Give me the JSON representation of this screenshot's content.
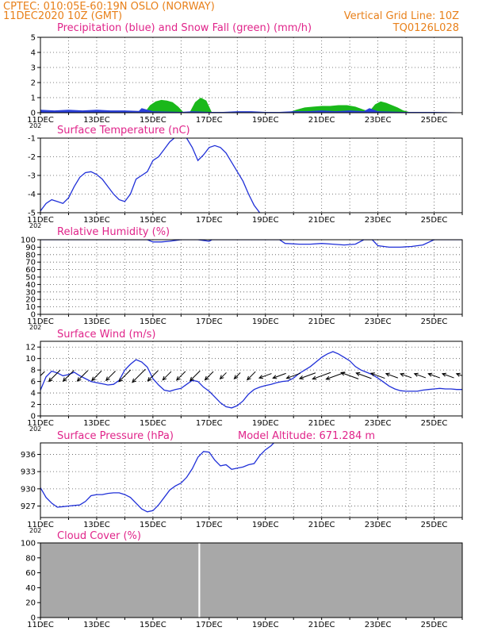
{
  "header": {
    "line1": "CPTEC:   010:05E-60:19N   OSLO (NORWAY)",
    "line2": "11DEC2020  10Z (GMT)",
    "grid_note": "Vertical Grid Line: 10Z",
    "code": "TQ0126L028"
  },
  "model_altitude": "Model Altitude: 671.284 m",
  "x_ticks": [
    "11DEC",
    "13DEC",
    "15DEC",
    "17DEC",
    "19DEC",
    "21DEC",
    "23DEC",
    "25DEC"
  ],
  "year_fragment": "202",
  "chart_data": [
    {
      "id": "precip",
      "type": "area",
      "title": "Precipitation (blue) and Snow Fall (green) (mm/h)",
      "ylim": [
        0,
        5
      ],
      "yticks": [
        "0",
        "1",
        "2",
        "3",
        "4",
        "5"
      ],
      "colors": {
        "precip": "#2a3fd8",
        "snow": "#1ab81a"
      },
      "series": [
        {
          "name": "Precipitation",
          "x": [
            0,
            0.5,
            1,
            1.5,
            2,
            2.5,
            3,
            3.5,
            3.6,
            4,
            5,
            5.4,
            6,
            6.5,
            7,
            7.5,
            8,
            8.5,
            9,
            9.5,
            10,
            10.5,
            11,
            11.5,
            11.7,
            12,
            13,
            14,
            15
          ],
          "values": [
            0.2,
            0.15,
            0.2,
            0.15,
            0.2,
            0.15,
            0.15,
            0.12,
            0.3,
            0.1,
            0.05,
            0.1,
            0.05,
            0.05,
            0.1,
            0.1,
            0.05,
            0.05,
            0.1,
            0.1,
            0.15,
            0.1,
            0.15,
            0.1,
            0.3,
            0.1,
            0.05,
            0.05,
            0.02
          ]
        },
        {
          "name": "Snow Fall",
          "x": [
            3.7,
            3.9,
            4.1,
            4.3,
            4.5,
            4.7,
            4.9,
            5.1,
            5.3,
            5.5,
            5.7,
            5.9,
            6.1,
            6.3,
            6.5,
            6.7,
            7,
            7.3,
            7.6,
            7.9,
            8.2,
            8.5,
            8.8,
            9.1,
            9.4,
            9.7,
            10,
            10.3,
            10.6,
            10.9,
            11.2,
            11.5,
            11.7,
            11.9,
            12.1,
            12.3,
            12.5,
            12.7,
            12.9,
            13.1,
            13.3,
            13.5,
            13.7,
            14,
            14.5,
            15
          ],
          "values": [
            0,
            0.5,
            0.75,
            0.85,
            0.8,
            0.7,
            0.4,
            0,
            0,
            0.7,
            1.0,
            0.8,
            0,
            0,
            0,
            0,
            0,
            0,
            0,
            0,
            0,
            0,
            0,
            0.2,
            0.35,
            0.4,
            0.45,
            0.45,
            0.5,
            0.5,
            0.4,
            0.2,
            0.1,
            0.55,
            0.75,
            0.65,
            0.5,
            0.35,
            0.15,
            0.05,
            0.02,
            0,
            0,
            0,
            0,
            0
          ]
        }
      ]
    },
    {
      "id": "temperature",
      "type": "line",
      "title": "Surface Temperature (nC)",
      "ylim": [
        -5,
        -1
      ],
      "yticks": [
        "-5",
        "-4",
        "-3",
        "-2",
        "-1"
      ],
      "colors": {
        "line": "#2030d8"
      },
      "series": [
        {
          "x": [
            0,
            0.2,
            0.4,
            0.6,
            0.8,
            1,
            1.2,
            1.4,
            1.6,
            1.8,
            2,
            2.2,
            2.4,
            2.6,
            2.8,
            3,
            3.2,
            3.4,
            3.6,
            3.8,
            4,
            4.2,
            4.4,
            4.6,
            4.8,
            5,
            5.2,
            5.4,
            5.6,
            5.8,
            6,
            6.2,
            6.4,
            6.6,
            6.8,
            7,
            7.2,
            7.4,
            7.6,
            7.8,
            8,
            8.2
          ],
          "values": [
            -4.9,
            -4.5,
            -4.3,
            -4.4,
            -4.5,
            -4.2,
            -3.6,
            -3.1,
            -2.85,
            -2.8,
            -2.95,
            -3.2,
            -3.6,
            -4.0,
            -4.3,
            -4.4,
            -4.0,
            -3.2,
            -3.0,
            -2.8,
            -2.2,
            -2.0,
            -1.6,
            -1.2,
            -0.95,
            -0.9,
            -1.0,
            -1.5,
            -2.2,
            -1.9,
            -1.5,
            -1.4,
            -1.5,
            -1.8,
            -2.3,
            -2.8,
            -3.3,
            -4.0,
            -4.6,
            -5.0,
            -5.2,
            -5.3
          ]
        }
      ]
    },
    {
      "id": "humidity",
      "type": "line",
      "title": "Relative Humidity (%)",
      "ylim": [
        0,
        100
      ],
      "yticks": [
        "0",
        "10",
        "20",
        "30",
        "40",
        "50",
        "60",
        "70",
        "80",
        "90",
        "100"
      ],
      "colors": {
        "line": "#2030d8"
      },
      "series": [
        {
          "x": [
            0,
            3.8,
            4,
            4.3,
            4.6,
            5,
            5.6,
            6,
            6.1,
            6.3,
            6.5,
            8.5,
            8.7,
            9.2,
            9.6,
            10,
            10.4,
            10.8,
            11.2,
            11.5,
            11.8,
            12,
            12.4,
            12.8,
            13.2,
            13.6,
            14,
            14.4,
            14.8,
            15
          ],
          "values": [
            100,
            100,
            97,
            97,
            98,
            100,
            100,
            98,
            100,
            100,
            100,
            100,
            95,
            94,
            94,
            95,
            94,
            93,
            94,
            100,
            100,
            92,
            90,
            90,
            91,
            93,
            100,
            100,
            100,
            100
          ]
        }
      ]
    },
    {
      "id": "wind",
      "type": "line",
      "title": "Surface Wind (m/s)",
      "ylim": [
        0,
        13
      ],
      "yticks": [
        "0",
        "2",
        "4",
        "6",
        "8",
        "10",
        "12"
      ],
      "colors": {
        "line": "#2030d8",
        "arrows": "#000000"
      },
      "series": [
        {
          "x": [
            0,
            0.2,
            0.4,
            0.6,
            0.8,
            1,
            1.2,
            1.4,
            1.6,
            1.8,
            2,
            2.2,
            2.4,
            2.6,
            2.8,
            3,
            3.2,
            3.4,
            3.6,
            3.8,
            4,
            4.2,
            4.4,
            4.6,
            4.8,
            5,
            5.2,
            5.4,
            5.6,
            5.8,
            6,
            6.2,
            6.4,
            6.6,
            6.8,
            7,
            7.2,
            7.4,
            7.6,
            7.8,
            8,
            8.2,
            8.4,
            8.6,
            8.8,
            9,
            9.2,
            9.4,
            9.6,
            9.8,
            10,
            10.2,
            10.4,
            10.6,
            10.8,
            11,
            11.2,
            11.4,
            11.6,
            11.8,
            12,
            12.2,
            12.4,
            12.6,
            12.8,
            13,
            13.2,
            13.4,
            13.6,
            13.8,
            14,
            14.2,
            14.4,
            14.6,
            14.8,
            15
          ],
          "values": [
            4.5,
            6.8,
            7.8,
            7.5,
            7.0,
            7.2,
            7.6,
            7.0,
            6.5,
            6.0,
            5.8,
            5.6,
            5.4,
            5.5,
            6.2,
            8.0,
            9.0,
            9.8,
            9.4,
            8.5,
            6.5,
            5.4,
            4.5,
            4.3,
            4.6,
            4.8,
            5.5,
            6.2,
            6.0,
            5.0,
            4.3,
            3.3,
            2.3,
            1.6,
            1.4,
            1.8,
            2.6,
            3.8,
            4.6,
            5.0,
            5.3,
            5.5,
            5.8,
            6.0,
            6.1,
            6.6,
            7.4,
            8.0,
            8.6,
            9.4,
            10.2,
            10.8,
            11.2,
            10.8,
            10.2,
            9.6,
            8.6,
            8.0,
            7.6,
            7.2,
            6.6,
            5.9,
            5.2,
            4.7,
            4.4,
            4.3,
            4.3,
            4.3,
            4.5,
            4.6,
            4.7,
            4.8,
            4.7,
            4.7,
            4.6,
            4.6
          ]
        }
      ]
    },
    {
      "id": "pressure",
      "type": "line",
      "title": "Surface Pressure (hPa)",
      "ylim": [
        925,
        938
      ],
      "yticks": [
        "927",
        "930",
        "933",
        "936"
      ],
      "colors": {
        "line": "#2030d8"
      },
      "series": [
        {
          "x": [
            0,
            0.2,
            0.4,
            0.6,
            0.8,
            1,
            1.2,
            1.4,
            1.6,
            1.8,
            2,
            2.2,
            2.4,
            2.6,
            2.8,
            3,
            3.2,
            3.4,
            3.6,
            3.8,
            4,
            4.2,
            4.4,
            4.6,
            4.8,
            5,
            5.2,
            5.4,
            5.6,
            5.8,
            6,
            6.2,
            6.4,
            6.6,
            6.8,
            7,
            7.2,
            7.4,
            7.6,
            7.8,
            8,
            8.2,
            8.4
          ],
          "values": [
            930.2,
            928.5,
            927.5,
            926.8,
            926.9,
            927.0,
            927.1,
            927.2,
            927.8,
            928.8,
            929.0,
            929.0,
            929.2,
            929.3,
            929.3,
            929.0,
            928.5,
            927.5,
            926.5,
            926.0,
            926.2,
            927.2,
            928.5,
            929.8,
            930.5,
            931.0,
            932.0,
            933.5,
            935.5,
            936.5,
            936.4,
            935.0,
            934.0,
            934.2,
            933.4,
            933.6,
            933.8,
            934.2,
            934.4,
            935.8,
            936.8,
            937.5,
            938.5
          ]
        }
      ]
    },
    {
      "id": "cloud",
      "type": "area",
      "title": "Cloud Cover (%)",
      "ylim": [
        0,
        100
      ],
      "yticks": [
        "0",
        "20",
        "40",
        "60",
        "80",
        "100"
      ],
      "colors": {
        "fill": "#a8a8a8",
        "gap": "#ffffff"
      },
      "series": [
        {
          "x": [
            0,
            5.6,
            5.62,
            5.68,
            5.7,
            15
          ],
          "values": [
            100,
            100,
            0,
            0,
            100,
            100
          ]
        }
      ]
    }
  ]
}
